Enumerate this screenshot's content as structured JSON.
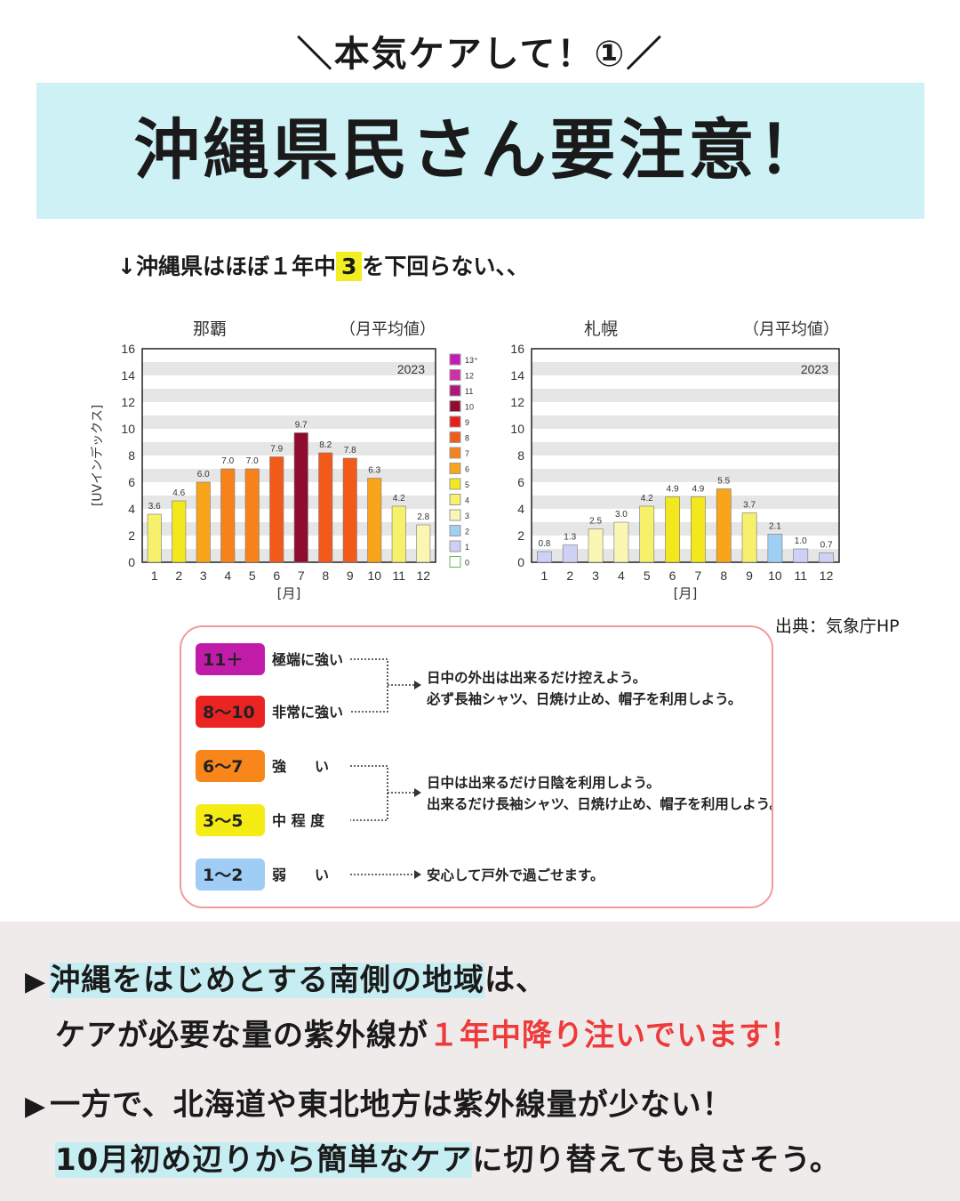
{
  "eyebrow": "＼本気ケアして！①／",
  "title": "沖縄県民さん要注意！",
  "intro": {
    "before": "↓沖縄県はほぼ１年中",
    "highlight": "3",
    "after": "を下回らない、、"
  },
  "source": "出典：気象庁HP",
  "chart_data": [
    {
      "type": "bar",
      "title": "那覇",
      "subtitle": "（月平均値）",
      "year_label": "2023",
      "ylabel": "[UVインデックス]",
      "xlabel": "[月]",
      "categories": [
        "1",
        "2",
        "3",
        "4",
        "5",
        "6",
        "7",
        "8",
        "9",
        "10",
        "11",
        "12"
      ],
      "values": [
        3.6,
        4.6,
        6.0,
        7.0,
        7.0,
        7.9,
        9.7,
        8.2,
        7.8,
        6.3,
        4.2,
        2.8
      ],
      "value_labels": [
        "3.6",
        "4.6",
        "6.0",
        "7.0",
        "7.0",
        "7.9",
        "9.7",
        "8.2",
        "7.8",
        "6.3",
        "4.2",
        "2.8"
      ],
      "ylim": [
        0,
        16
      ],
      "yticks": [
        "0",
        "2",
        "4",
        "6",
        "8",
        "10",
        "12",
        "14",
        "16"
      ],
      "grid": "horizontal bands"
    },
    {
      "type": "bar",
      "title": "札幌",
      "subtitle": "（月平均値）",
      "year_label": "2023",
      "xlabel": "[月]",
      "categories": [
        "1",
        "2",
        "3",
        "4",
        "5",
        "6",
        "7",
        "8",
        "9",
        "10",
        "11",
        "12"
      ],
      "values": [
        0.8,
        1.3,
        2.5,
        3.0,
        4.2,
        4.9,
        4.9,
        5.5,
        3.7,
        2.1,
        1.0,
        0.7
      ],
      "value_labels": [
        "0.8",
        "1.3",
        "2.5",
        "3.0",
        "4.2",
        "4.9",
        "4.9",
        "5.5",
        "3.7",
        "2.1",
        "1.0",
        "0.7"
      ],
      "ylim": [
        0,
        16
      ],
      "yticks": [
        "0",
        "2",
        "4",
        "6",
        "8",
        "10",
        "12",
        "14",
        "16"
      ],
      "grid": "horizontal bands"
    }
  ],
  "color_scale": {
    "labels": [
      "13⁺",
      "12",
      "11",
      "10",
      "9",
      "8",
      "7",
      "6",
      "5",
      "4",
      "3",
      "2",
      "1",
      "0"
    ],
    "colors": [
      "#c21cb3",
      "#d12fa6",
      "#b01878",
      "#8f0c2e",
      "#ea1d1d",
      "#f25a1a",
      "#f7821a",
      "#f9a419",
      "#f3e81e",
      "#f6f06a",
      "#faf7b4",
      "#9fcff5",
      "#cfd0f5",
      "#ffffff"
    ]
  },
  "legend": {
    "rows": [
      {
        "badge": "11＋",
        "label": "極端に強い",
        "color": "#c11ca9"
      },
      {
        "badge": "8〜10",
        "label": "非常に強い",
        "color": "#ea2323"
      },
      {
        "badge": "6〜7",
        "label": "強　　い",
        "color": "#f8861b"
      },
      {
        "badge": "3〜5",
        "label": "中 程 度",
        "color": "#f5ec16"
      },
      {
        "badge": "1〜2",
        "label": "弱　　い",
        "color": "#9fcdf5"
      }
    ],
    "advice": [
      {
        "line1": "日中の外出は出来るだけ控えよう。",
        "line2": "必ず長袖シャツ、日焼け止め、帽子を利用しよう。"
      },
      {
        "line1": "日中は出来るだけ日陰を利用しよう。",
        "line2": "出来るだけ長袖シャツ、日焼け止め、帽子を利用しよう。"
      },
      {
        "line1": "安心して戸外で過ごせます。"
      }
    ]
  },
  "bottom": {
    "marker": "▶",
    "p1_hl": "沖縄をはじめとする南側の地域",
    "p1_rest": "は、",
    "p2_plain": "ケアが必要な量の紫外線が",
    "p2_red": "１年中降り注いでいます！",
    "p3": "一方で、北海道や東北地方は紫外線量が少ない！",
    "p4_hl": "10月初め辺りから簡単なケア",
    "p4_rest": "に切り替えても良さそう。"
  },
  "colors": {
    "title_band": "#cdf1f5",
    "highlight_yellow": "#f3ee22",
    "highlight_blue": "#c6eef2",
    "accent_red": "#ee3a3a",
    "legend_border": "#f29a9a",
    "bottom_bg": "#efebeb"
  }
}
